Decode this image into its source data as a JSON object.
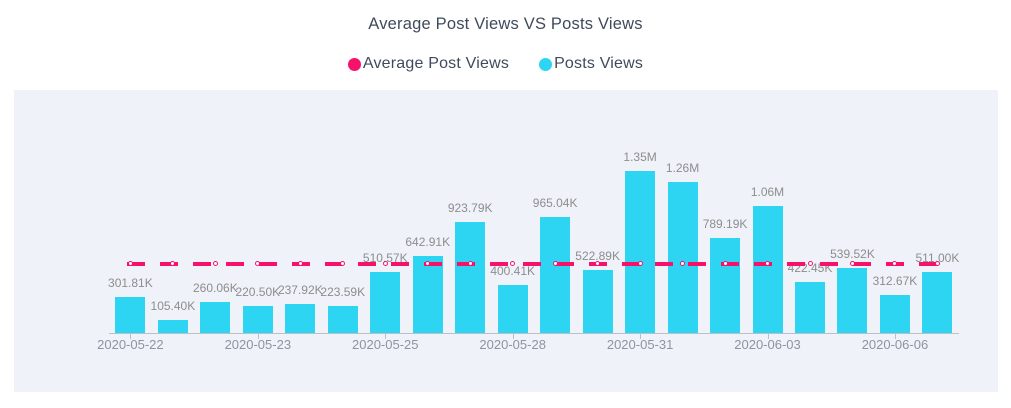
{
  "title": "Average Post Views VS Posts Views",
  "legend": [
    {
      "label": "Average Post Views",
      "color": "#f6126b"
    },
    {
      "label": "Posts Views",
      "color": "#2ed5f2"
    }
  ],
  "colors": {
    "bar": "#2ed5f2",
    "line": "#f6126b",
    "panel_background": "#eff2f9",
    "title_text": "#3f4a5c",
    "value_label_text": "#8d8d8d",
    "axis_label_text": "#8f939c",
    "axis_line": "#bcbfc6"
  },
  "chart_data": {
    "type": "bar",
    "title": "Average Post Views VS Posts Views",
    "xlabel": "",
    "ylabel": "",
    "grid": false,
    "legend_position": "top",
    "x_tick_labels": [
      "2020-05-22",
      "2020-05-23",
      "2020-05-25",
      "2020-05-28",
      "2020-05-31",
      "2020-06-03",
      "2020-06-06"
    ],
    "x_tick_indices": [
      0,
      3,
      6,
      9,
      12,
      15,
      18
    ],
    "series": [
      {
        "name": "Posts Views",
        "type": "bar",
        "color": "#2ed5f2",
        "values_thousands": [
          301.81,
          105.4,
          260.06,
          220.5,
          237.92,
          223.59,
          510.57,
          642.91,
          923.79,
          400.41,
          965.04,
          522.89,
          1350,
          1260,
          789.19,
          1060,
          422.45,
          539.52,
          312.67,
          511.0
        ],
        "value_labels": [
          "301.81K",
          "105.40K",
          "260.06K",
          "220.50K",
          "237.92K",
          "223.59K",
          "510.57K",
          "642.91K",
          "923.79K",
          "400.41K",
          "965.04K",
          "522.89K",
          "1.35M",
          "1.26M",
          "789.19K",
          "1.06M",
          "422.45K",
          "539.52K",
          "312.67K",
          "511.00K"
        ]
      },
      {
        "name": "Average Post Views",
        "type": "line",
        "style": "dashed",
        "color": "#f6126b",
        "marker": "circle-open",
        "constant_value_thousands": 577.99
      }
    ]
  }
}
